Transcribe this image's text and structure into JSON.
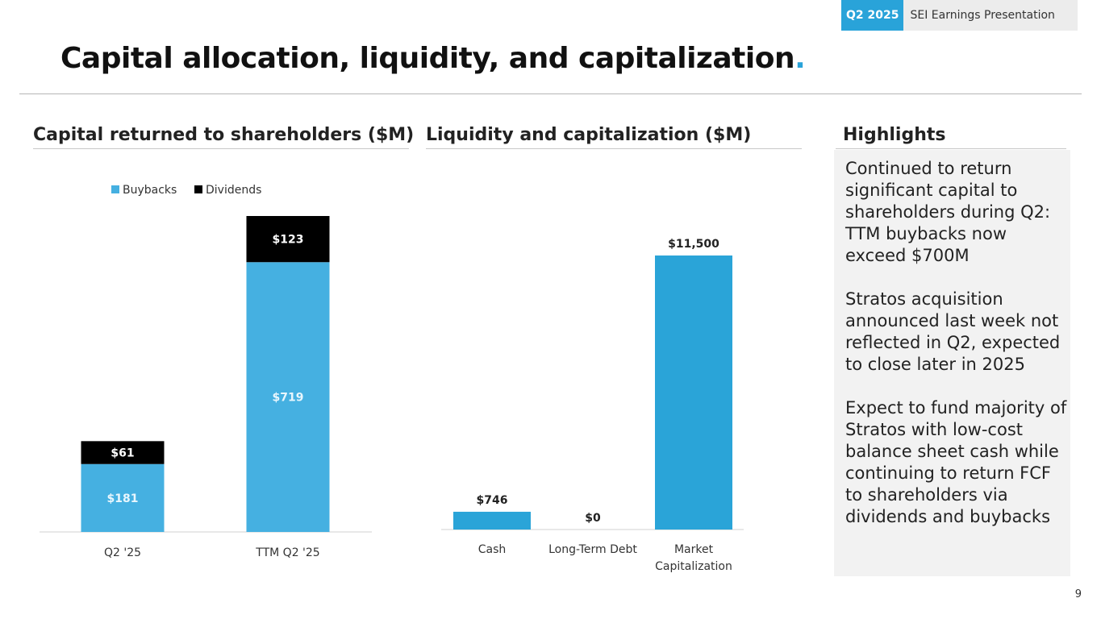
{
  "header": {
    "badge_quarter": "Q2 2025",
    "badge_text": "SEI Earnings Presentation",
    "title": "Capital allocation, liquidity, and capitalization",
    "title_dot": "."
  },
  "colors": {
    "accent": "#29a3d9",
    "buybacks": "#45b0e1",
    "dividends": "#000000",
    "liquidity_bar": "#2aa4d8"
  },
  "sections": {
    "capital_title": "Capital returned to shareholders ($M)",
    "liquidity_title": "Liquidity and capitalization ($M)",
    "highlights_title": "Highlights"
  },
  "chart_data": [
    {
      "type": "bar",
      "stacked": true,
      "title": "Capital returned to shareholders ($M)",
      "categories": [
        "Q2 '25",
        "TTM Q2 '25"
      ],
      "series": [
        {
          "name": "Buybacks",
          "values": [
            181,
            719
          ],
          "labels": [
            "$181",
            "$719"
          ]
        },
        {
          "name": "Dividends",
          "values": [
            61,
            123
          ],
          "labels": [
            "$61",
            "$123"
          ]
        }
      ],
      "legend": [
        "Buybacks",
        "Dividends"
      ],
      "legend_position": "top",
      "ylim": [
        0,
        842
      ]
    },
    {
      "type": "bar",
      "title": "Liquidity and capitalization ($M)",
      "categories": [
        "Cash",
        "Long-Term Debt",
        "Market Capitalization"
      ],
      "values": [
        746,
        0,
        11500
      ],
      "labels": [
        "$746",
        "$0",
        "$11,500"
      ],
      "ylim": [
        0,
        11500
      ]
    }
  ],
  "highlights": [
    "Continued to return significant capital to shareholders during Q2: TTM buybacks now exceed $700M",
    "Stratos acquisition announced last week not reflected in Q2, expected to close later in 2025",
    "Expect to fund majority of Stratos with low-cost balance sheet cash while continuing to return FCF to shareholders via dividends and buybacks"
  ],
  "page_number": "9"
}
